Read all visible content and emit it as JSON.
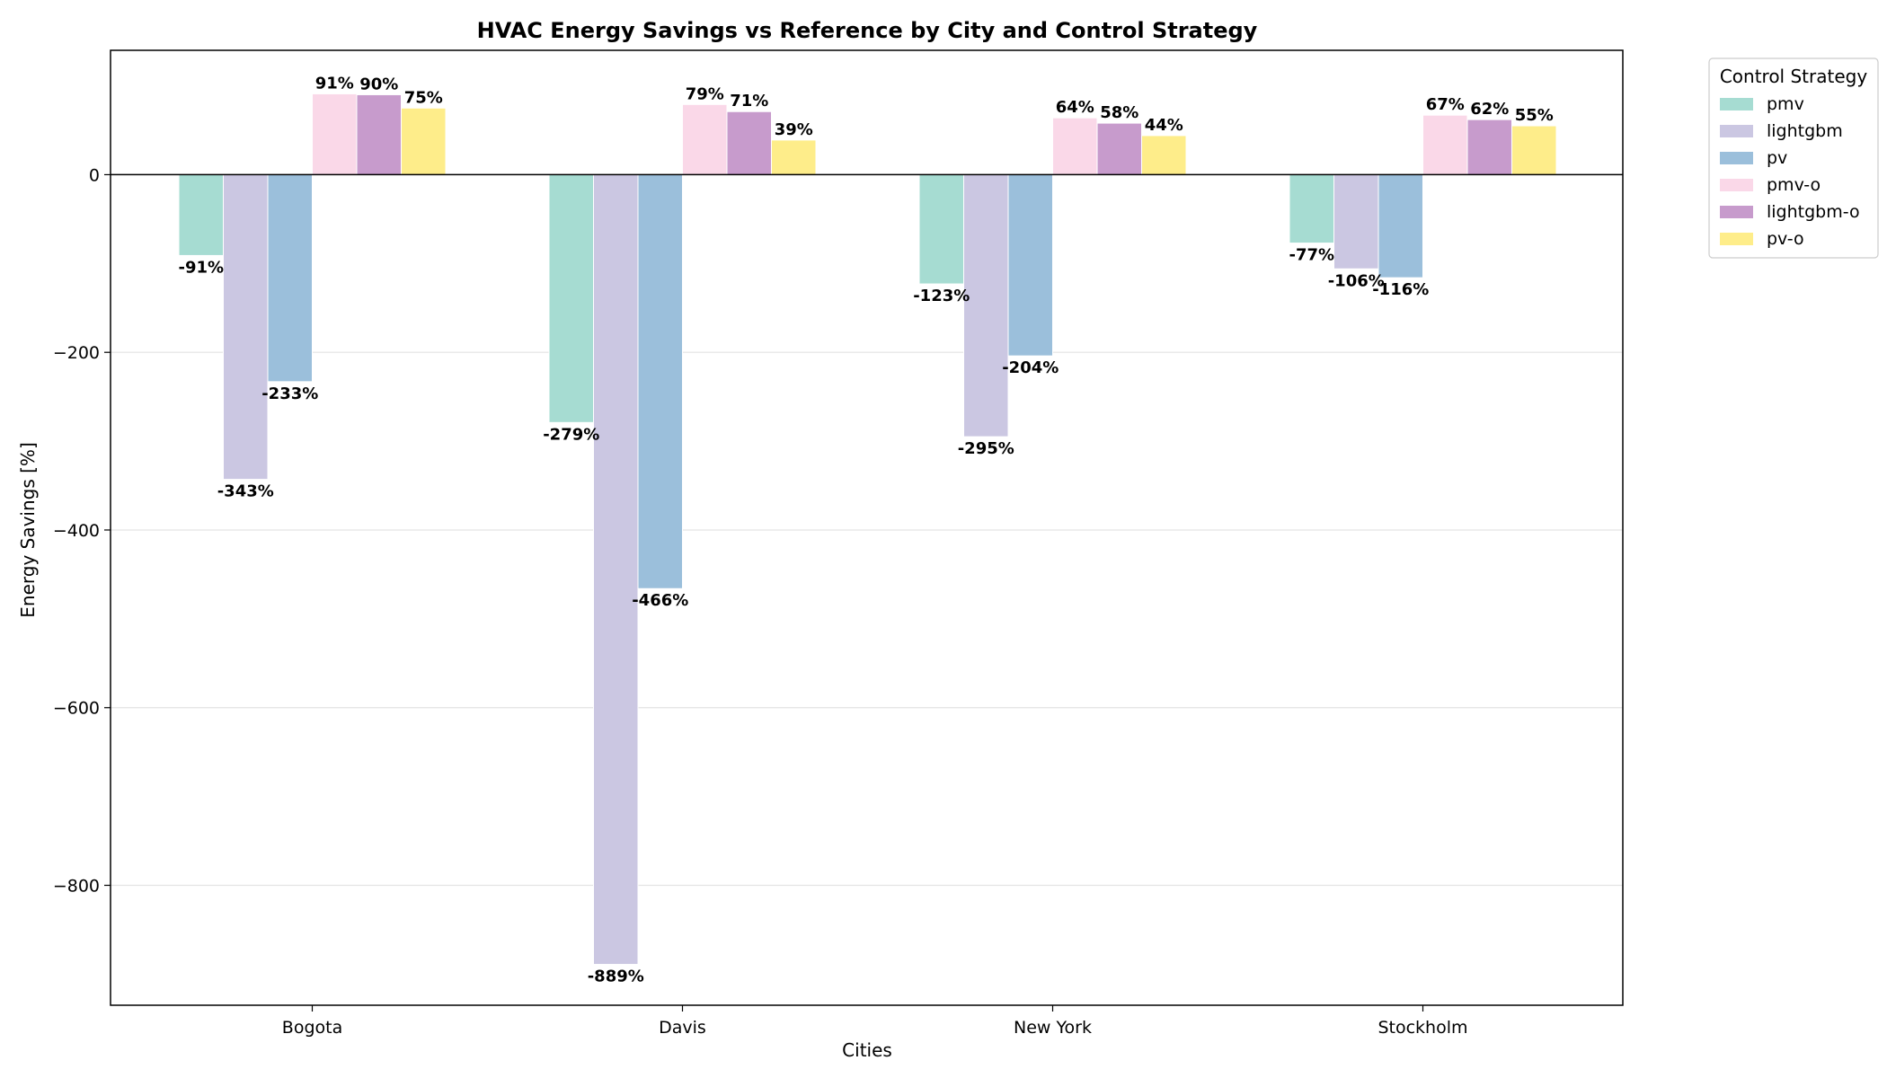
{
  "chart_data": {
    "type": "bar",
    "title": "HVAC Energy Savings vs Reference by City and Control Strategy",
    "xlabel": "Cities",
    "ylabel": "Energy Savings [%]",
    "categories": [
      "Bogota",
      "Davis",
      "New York",
      "Stockholm"
    ],
    "ylim": [
      -935,
      140
    ],
    "yticks": [
      0,
      -200,
      -400,
      -600,
      -800
    ],
    "grid": "horizontal",
    "legend_title": "Control Strategy",
    "legend_position": "outside-top-right",
    "series": [
      {
        "name": "pmv",
        "color": "#a6dcd2",
        "values": [
          -91,
          -279,
          -123,
          -77
        ],
        "labels": [
          "-91%",
          "-279%",
          "-123%",
          "-77%"
        ]
      },
      {
        "name": "lightgbm",
        "color": "#cbc7e2",
        "values": [
          -343,
          -889,
          -295,
          -106
        ],
        "labels": [
          "-343%",
          "-889%",
          "-295%",
          "-106%"
        ]
      },
      {
        "name": "pv",
        "color": "#9bbfdb",
        "values": [
          -233,
          -466,
          -204,
          -116
        ],
        "labels": [
          "-233%",
          "-466%",
          "-204%",
          "-116%"
        ]
      },
      {
        "name": "pmv-o",
        "color": "#fad8e8",
        "values": [
          91,
          79,
          64,
          67
        ],
        "labels": [
          "91%",
          "79%",
          "64%",
          "67%"
        ]
      },
      {
        "name": "lightgbm-o",
        "color": "#c79bcc",
        "values": [
          90,
          71,
          58,
          62
        ],
        "labels": [
          "90%",
          "71%",
          "58%",
          "62%"
        ]
      },
      {
        "name": "pv-o",
        "color": "#feed8a",
        "values": [
          75,
          39,
          44,
          55
        ],
        "labels": [
          "75%",
          "39%",
          "44%",
          "55%"
        ]
      }
    ]
  }
}
